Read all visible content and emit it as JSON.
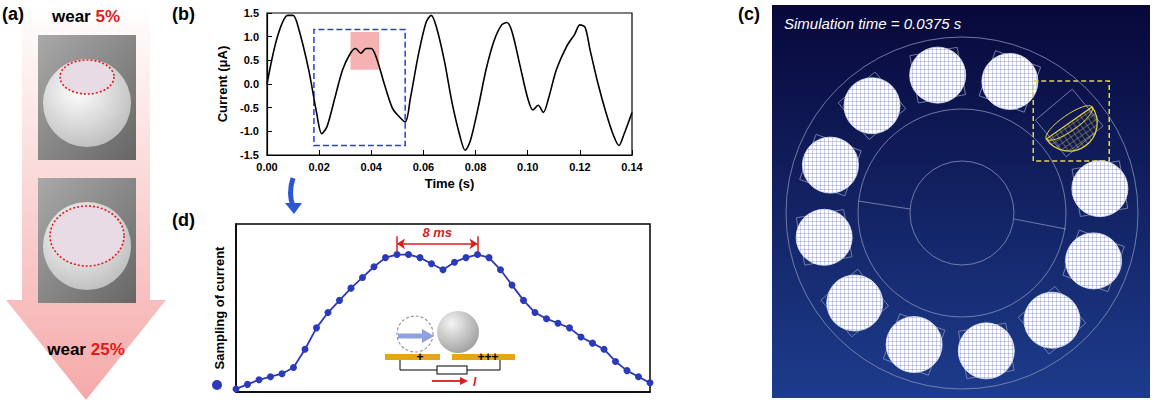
{
  "panel_labels": {
    "a": "(a)",
    "b": "(b)",
    "c": "(c)",
    "d": "(d)"
  },
  "wear_photos": [
    {
      "word": "wear",
      "amount": "5%"
    },
    {
      "word": "wear",
      "amount": "25%"
    }
  ],
  "chart_data": [
    {
      "type": "line",
      "color": "#000000",
      "x_label": "Time (s)",
      "y_label": "Current (μA)",
      "x": [
        0,
        0.004,
        0.008,
        0.01,
        0.012,
        0.016,
        0.019,
        0.021,
        0.023,
        0.026,
        0.029,
        0.032,
        0.034,
        0.036,
        0.038,
        0.04,
        0.042,
        0.045,
        0.048,
        0.05,
        0.053,
        0.055,
        0.058,
        0.061,
        0.063,
        0.065,
        0.068,
        0.071,
        0.074,
        0.076,
        0.078,
        0.081,
        0.084,
        0.087,
        0.09,
        0.092,
        0.094,
        0.097,
        0.1,
        0.102,
        0.104,
        0.106,
        0.108,
        0.111,
        0.115,
        0.118,
        0.12,
        0.122,
        0.124,
        0.127,
        0.13,
        0.133,
        0.135,
        0.137,
        0.14
      ],
      "values": [
        0.0,
        1.0,
        1.45,
        1.45,
        1.2,
        0.3,
        -0.6,
        -1.05,
        -0.9,
        -0.3,
        0.3,
        0.65,
        0.75,
        0.65,
        0.75,
        0.75,
        0.55,
        0.0,
        -0.5,
        -0.65,
        -0.8,
        -0.3,
        0.6,
        1.3,
        1.45,
        1.2,
        0.5,
        -0.4,
        -1.1,
        -1.4,
        -1.2,
        -0.5,
        0.3,
        0.9,
        1.25,
        1.3,
        1.1,
        0.4,
        -0.3,
        -0.55,
        -0.45,
        -0.6,
        -0.3,
        0.3,
        0.8,
        1.05,
        1.25,
        1.2,
        0.7,
        0.0,
        -0.6,
        -1.1,
        -1.3,
        -1.05,
        -0.6
      ],
      "xlim": [
        0,
        0.14
      ],
      "xticks": [
        {
          "value": 0,
          "label": "0.00"
        },
        {
          "value": 0.02,
          "label": "0.02"
        },
        {
          "value": 0.04,
          "label": "0.04"
        },
        {
          "value": 0.06,
          "label": "0.06"
        },
        {
          "value": 0.08,
          "label": "0.08"
        },
        {
          "value": 0.1,
          "label": "0.10"
        },
        {
          "value": 0.12,
          "label": "0.12"
        },
        {
          "value": 0.14,
          "label": "0.14"
        }
      ],
      "ylim": [
        -1.5,
        1.5
      ],
      "yticks": [
        -1.5,
        {
          "value": -1,
          "label": "-1.0"
        },
        -0.5,
        {
          "value": 0,
          "label": "0.0"
        },
        0.5,
        {
          "value": 1,
          "label": "1.0"
        },
        1.5
      ],
      "highlight": {
        "x": [
          0.032,
          0.043
        ],
        "y": [
          0.3,
          1.1
        ],
        "color": "#f4a5a5"
      },
      "zoom_box": {
        "x": [
          0.018,
          0.053
        ],
        "y": [
          -1.3,
          1.15
        ],
        "color": "#2b3fd6"
      }
    },
    {
      "type": "line",
      "marker": "circle",
      "color": "#2a3ab8",
      "y_label": "Sampling of current",
      "tick_labels": false,
      "x": [
        0,
        1,
        2,
        3,
        4,
        5,
        6,
        7,
        8,
        9,
        10,
        11,
        12,
        13,
        14,
        15,
        16,
        17,
        18,
        19,
        20,
        21,
        22,
        23,
        24,
        25,
        26,
        27,
        28,
        29,
        30,
        31,
        32,
        33,
        34,
        35,
        36
      ],
      "values": [
        0.02,
        0.05,
        0.08,
        0.1,
        0.12,
        0.16,
        0.28,
        0.42,
        0.52,
        0.6,
        0.68,
        0.75,
        0.82,
        0.88,
        0.9,
        0.9,
        0.88,
        0.84,
        0.8,
        0.85,
        0.88,
        0.9,
        0.88,
        0.8,
        0.7,
        0.6,
        0.52,
        0.48,
        0.45,
        0.42,
        0.36,
        0.32,
        0.28,
        0.2,
        0.14,
        0.1,
        0.06
      ],
      "xlim": [
        0,
        36
      ],
      "ylim": [
        0,
        1.1
      ],
      "bracket": {
        "label": "8 ms",
        "x": [
          14,
          21
        ],
        "y": 0.97,
        "color": "#d81e1e"
      },
      "inset": {
        "left_charge": "+",
        "right_charge": "+++",
        "current": "I"
      }
    }
  ],
  "simulation": {
    "time_label": "Simulation time = 0.0375 s",
    "balls": 12,
    "highlighted_ball": 2
  }
}
